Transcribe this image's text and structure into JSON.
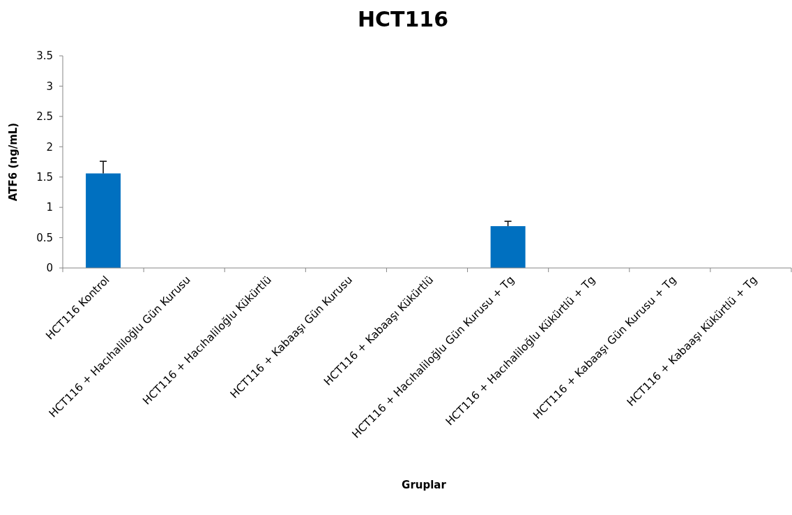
{
  "chart_data": {
    "type": "bar",
    "title": "HCT116",
    "xlabel": "Gruplar",
    "ylabel": "ATF6 (ng/mL)",
    "categories": [
      "HCT116 Kontrol",
      "HCT116 + Hacıhaliloğlu Gün Kurusu",
      "HCT116 + Hacıhaliloğlu Kükürtlü",
      "HCT116 + Kabaaşı Gün Kurusu",
      "HCT116 + Kabaaşı Kükürtlü",
      "HCT116 + Hacıhaliloğlu Gün Kurusu + Tg",
      "HCT116 + Hacıhaliloğlu Kükürtlü + Tg",
      "HCT116 + Kabaaşı Gün Kurusu + Tg",
      "HCT116 + Kabaaşı Kükürtlü + Tg"
    ],
    "values": [
      1.56,
      0,
      0,
      0,
      0,
      0.69,
      0,
      0,
      0
    ],
    "errors": [
      [
        1.56,
        1.76
      ],
      null,
      null,
      null,
      null,
      [
        0.69,
        0.77
      ],
      null,
      null,
      null
    ],
    "color": "#0070c0",
    "ylim": [
      0,
      3.5
    ],
    "yticks": [
      0,
      {
        "value": 0.5,
        "label": "0.5"
      },
      1,
      {
        "value": 1.5,
        "label": "1.5"
      },
      2,
      {
        "value": 2.5,
        "label": "2.5"
      },
      3,
      {
        "value": 3.5,
        "label": "3.5"
      }
    ],
    "grid": false
  }
}
